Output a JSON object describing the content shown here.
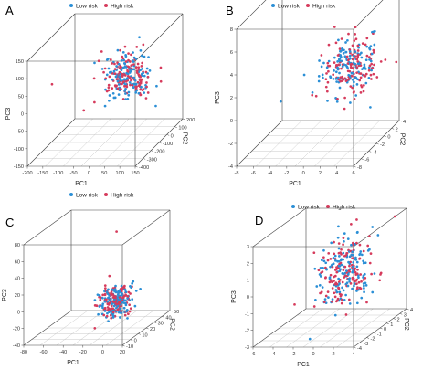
{
  "colors": {
    "low_risk": "#2b8fd6",
    "high_risk": "#d63b5c"
  },
  "legend": {
    "low_label": "Low risk",
    "high_label": "High risk"
  },
  "chart_data": [
    {
      "type": "scatter",
      "panel_label": "A",
      "legend_placement": "top",
      "xlabel": "PC1",
      "ylabel": "PC2",
      "zlabel": "PC3",
      "x_ticks": [
        "-200",
        "-150",
        "-100",
        "-50",
        "0",
        "50",
        "100",
        "150"
      ],
      "y_ticks": [
        "-400",
        "-300",
        "-200",
        "-100",
        "0",
        "100",
        "200"
      ],
      "z_ticks": [
        "-150",
        "-100",
        "-50",
        "0",
        "50",
        "100",
        "150"
      ],
      "xlim": [
        -200,
        150
      ],
      "ylim": [
        -400,
        200
      ],
      "zlim": [
        -150,
        150
      ],
      "cluster": {
        "center": [
          10,
          40,
          10
        ],
        "spread": [
          35,
          60,
          30
        ]
      },
      "outliers": [
        [
          -210,
          -50,
          5,
          "high"
        ],
        [
          -130,
          40,
          -90,
          "high"
        ],
        [
          20,
          -250,
          30,
          "high"
        ],
        [
          -90,
          20,
          50,
          "low"
        ],
        [
          40,
          80,
          110,
          "low"
        ]
      ],
      "n_per_group": 130,
      "grid": true
    },
    {
      "type": "scatter",
      "panel_label": "B",
      "legend_placement": "top",
      "xlabel": "PC1",
      "ylabel": "PC2",
      "zlabel": "PC3",
      "x_ticks": [
        "-8",
        "-6",
        "-4",
        "-2",
        "0",
        "2",
        "4",
        "6"
      ],
      "y_ticks": [
        "-8",
        "-6",
        "-4",
        "-2",
        "0",
        "2",
        "4"
      ],
      "z_ticks": [
        "-4",
        "-2",
        "0",
        "2",
        "4",
        "6",
        "8"
      ],
      "xlim": [
        -8,
        6
      ],
      "ylim": [
        -8,
        4
      ],
      "zlim": [
        -4,
        8
      ],
      "cluster": {
        "center": [
          2,
          0,
          2
        ],
        "spread": [
          1.5,
          1.5,
          1.2
        ]
      },
      "outliers": [
        [
          -2,
          2,
          7.5,
          "high"
        ],
        [
          1,
          -2,
          6.2,
          "high"
        ],
        [
          3,
          3,
          -2.5,
          "low"
        ],
        [
          -5,
          -3,
          0,
          "low"
        ],
        [
          -4,
          1,
          1,
          "low"
        ]
      ],
      "n_per_group": 130,
      "grid": true
    },
    {
      "type": "scatter",
      "panel_label": "C",
      "legend_placement": "top",
      "xlabel": "PC1",
      "ylabel": "PC2",
      "zlabel": "PC3",
      "x_ticks": [
        "-80",
        "-60",
        "-40",
        "-20",
        "0",
        "20"
      ],
      "y_ticks": [
        "-10",
        "0",
        "10",
        "20",
        "30",
        "40",
        "50"
      ],
      "z_ticks": [
        "-40",
        "-20",
        "0",
        "20",
        "40",
        "60",
        "80"
      ],
      "xlim": [
        -80,
        20
      ],
      "ylim": [
        -10,
        50
      ],
      "zlim": [
        -40,
        80
      ],
      "cluster": {
        "center": [
          -2,
          10,
          0
        ],
        "spread": [
          7,
          6,
          9
        ]
      },
      "outliers": [
        [
          -10,
          20,
          75,
          "high"
        ],
        [
          -20,
          5,
          -30,
          "high"
        ],
        [
          5,
          15,
          -25,
          "low"
        ]
      ],
      "n_per_group": 130,
      "grid": true
    },
    {
      "type": "scatter",
      "panel_label": "D",
      "legend_placement": "top",
      "xlabel": "PC1",
      "ylabel": "PC2",
      "zlabel": "PC3",
      "x_ticks": [
        "-6",
        "-4",
        "-2",
        "0",
        "2",
        "4"
      ],
      "y_ticks": [
        "-4",
        "-3",
        "-2",
        "-1",
        "0",
        "1",
        "2",
        "3",
        "4"
      ],
      "z_ticks": [
        "-3",
        "-2",
        "-1",
        "0",
        "1",
        "2",
        "3"
      ],
      "xlim": [
        -6,
        4
      ],
      "ylim": [
        -4,
        4
      ],
      "zlim": [
        -3,
        3
      ],
      "cluster": {
        "center": [
          0.5,
          0,
          0.4
        ],
        "spread": [
          1.2,
          1.3,
          1.0
        ]
      },
      "outliers": [
        [
          -4.5,
          0,
          -1.6,
          "high"
        ],
        [
          3.5,
          3,
          2.8,
          "high"
        ],
        [
          -1,
          -3,
          -2.8,
          "low"
        ]
      ],
      "n_per_group": 140,
      "grid": true
    }
  ]
}
